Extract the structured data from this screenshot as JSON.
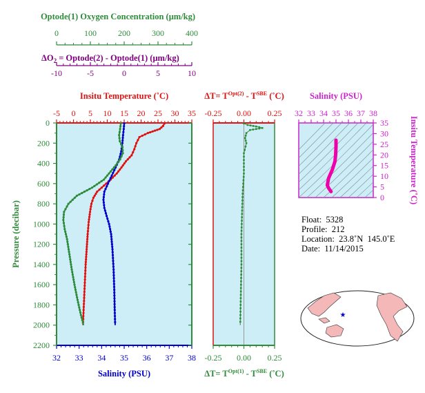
{
  "colors": {
    "oxygen": "#2e8b3a",
    "delta_o2": "#800080",
    "temperature": "#e01010",
    "salinity": "#0000cc",
    "salinity_ts": "#ee00aa",
    "plot_bg": "#cdeef7",
    "ts_frame": "#cc22cc"
  },
  "axes": {
    "oxygen_label": "Optode(1) Oxygen Concentration (μm/kg)",
    "oxygen_ticks": [
      "0",
      "100",
      "200",
      "300",
      "400"
    ],
    "delta_label_prefix": "ΔO",
    "delta_label_sub": "2",
    "delta_label_rest": " = Optode(2) - Optode(1)    (μm/kg)",
    "delta_ticks": [
      "-10",
      "-5",
      "0",
      "5",
      "10"
    ],
    "temp_label": "Insitu Temperature (˚C)",
    "temp_ticks": [
      "-5",
      "0",
      "5",
      "10",
      "15",
      "20",
      "25",
      "30",
      "35"
    ],
    "pressure_label": "Pressure (decibar)",
    "pressure_ticks": [
      "0",
      "200",
      "400",
      "600",
      "800",
      "1000",
      "1200",
      "1400",
      "1600",
      "1800",
      "2000",
      "2200"
    ],
    "salinity_label": "Salinity (PSU)",
    "salinity_ticks": [
      "32",
      "33",
      "34",
      "35",
      "36",
      "37",
      "38"
    ],
    "dt_top_prefix": "ΔT= T",
    "dt_top_sup1": "Opt(2)",
    "dt_top_mid": " - T",
    "dt_top_sup2": "SBE",
    "dt_top_suffix": " (˚C)",
    "dt_bottom_sup1": "Opt(1)",
    "dt_ticks": [
      "-0.25",
      "0.00",
      "0.25"
    ],
    "ts_salinity_label": "Salinity (PSU)",
    "ts_salinity_ticks": [
      "32",
      "33",
      "34",
      "35",
      "36",
      "37",
      "38"
    ],
    "ts_temp_label": "Insitu Temperature (˚C)",
    "ts_temp_ticks": [
      "0",
      "5",
      "10",
      "15",
      "20",
      "25",
      "30",
      "35"
    ]
  },
  "info": {
    "float": "Float:  5328",
    "profile": "Profile:  212",
    "location": "Location:  23.8˚N  145.0˚E",
    "date": "Date:  11/14/2015"
  },
  "chart_data": {
    "type": "line",
    "y_axis": {
      "label": "Pressure (decibar)",
      "range": [
        0,
        2200
      ],
      "inverted": true
    },
    "series": [
      {
        "name": "Insitu Temperature",
        "axis": "temperature",
        "xlim": [
          -5,
          35
        ],
        "points": [
          [
            26.9,
            5
          ],
          [
            26.5,
            30
          ],
          [
            25.5,
            60
          ],
          [
            22,
            100
          ],
          [
            19.5,
            140
          ],
          [
            18.6,
            200
          ],
          [
            18,
            260
          ],
          [
            17.2,
            320
          ],
          [
            15.5,
            380
          ],
          [
            14.2,
            440
          ],
          [
            12.8,
            500
          ],
          [
            11,
            560
          ],
          [
            9,
            620
          ],
          [
            7,
            680
          ],
          [
            5.9,
            740
          ],
          [
            5.3,
            800
          ],
          [
            4.9,
            880
          ],
          [
            4.5,
            980
          ],
          [
            4.2,
            1100
          ],
          [
            3.9,
            1250
          ],
          [
            3.6,
            1400
          ],
          [
            3.4,
            1550
          ],
          [
            3.2,
            1700
          ],
          [
            3.0,
            1850
          ],
          [
            2.8,
            2000
          ]
        ]
      },
      {
        "name": "Salinity",
        "axis": "salinity",
        "xlim": [
          32,
          38
        ],
        "points": [
          [
            35.0,
            5
          ],
          [
            34.98,
            60
          ],
          [
            34.95,
            120
          ],
          [
            34.92,
            200
          ],
          [
            34.87,
            280
          ],
          [
            34.78,
            360
          ],
          [
            34.62,
            440
          ],
          [
            34.45,
            520
          ],
          [
            34.28,
            600
          ],
          [
            34.12,
            680
          ],
          [
            34.08,
            760
          ],
          [
            34.12,
            840
          ],
          [
            34.22,
            920
          ],
          [
            34.33,
            1000
          ],
          [
            34.42,
            1100
          ],
          [
            34.48,
            1250
          ],
          [
            34.53,
            1450
          ],
          [
            34.56,
            1650
          ],
          [
            34.58,
            1850
          ],
          [
            34.6,
            2000
          ]
        ]
      },
      {
        "name": "Optode(1) Oxygen Concentration",
        "axis": "oxygen",
        "xlim": [
          0,
          400
        ],
        "points": [
          [
            190,
            5
          ],
          [
            188,
            60
          ],
          [
            185,
            120
          ],
          [
            187,
            180
          ],
          [
            195,
            240
          ],
          [
            196,
            300
          ],
          [
            188,
            360
          ],
          [
            175,
            420
          ],
          [
            160,
            480
          ],
          [
            140,
            560
          ],
          [
            105,
            640
          ],
          [
            60,
            720
          ],
          [
            35,
            800
          ],
          [
            22,
            880
          ],
          [
            20,
            960
          ],
          [
            24,
            1050
          ],
          [
            31,
            1150
          ],
          [
            38,
            1300
          ],
          [
            45,
            1450
          ],
          [
            53,
            1600
          ],
          [
            62,
            1750
          ],
          [
            72,
            1900
          ],
          [
            80,
            2000
          ]
        ]
      },
      {
        "name": "ΔT Optode(2) - SBE",
        "axis": "dt",
        "xlim": [
          -0.25,
          0.25
        ],
        "points": [
          [
            0.0,
            5
          ],
          [
            0.03,
            20
          ],
          [
            0.1,
            35
          ],
          [
            0.15,
            50
          ],
          [
            0.05,
            70
          ],
          [
            0.02,
            100
          ],
          [
            0.01,
            150
          ],
          [
            0.02,
            200
          ],
          [
            0.0,
            300
          ],
          [
            0.0,
            500
          ],
          [
            -0.01,
            700
          ],
          [
            -0.015,
            900
          ],
          [
            -0.02,
            1100
          ],
          [
            -0.02,
            1400
          ],
          [
            -0.025,
            1700
          ],
          [
            -0.03,
            2000
          ]
        ]
      },
      {
        "name": "T-S profile",
        "axis": "ts",
        "points": [
          [
            34.6,
            2.8
          ],
          [
            34.4,
            4.5
          ],
          [
            34.3,
            5.8
          ],
          [
            34.4,
            9
          ],
          [
            34.7,
            13
          ],
          [
            34.92,
            17
          ],
          [
            34.97,
            20
          ],
          [
            35.0,
            24
          ],
          [
            35.0,
            26.9
          ]
        ]
      }
    ]
  }
}
